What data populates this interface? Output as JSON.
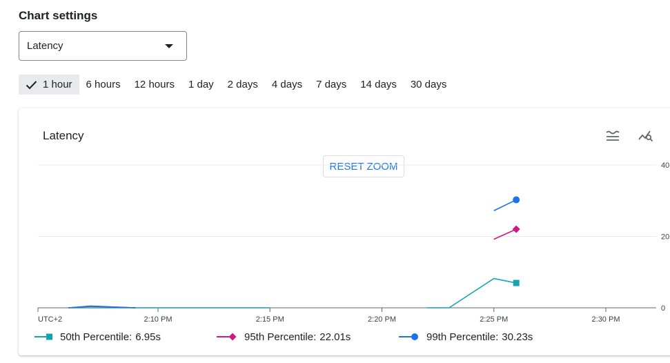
{
  "settings": {
    "title": "Chart settings"
  },
  "metric_select": {
    "value": "Latency"
  },
  "time_ranges": [
    {
      "label": "1 hour",
      "selected": true
    },
    {
      "label": "6 hours",
      "selected": false
    },
    {
      "label": "12 hours",
      "selected": false
    },
    {
      "label": "1 day",
      "selected": false
    },
    {
      "label": "2 days",
      "selected": false
    },
    {
      "label": "4 days",
      "selected": false
    },
    {
      "label": "7 days",
      "selected": false
    },
    {
      "label": "14 days",
      "selected": false
    },
    {
      "label": "30 days",
      "selected": false
    }
  ],
  "card": {
    "title": "Latency",
    "reset_zoom_label": "RESET ZOOM",
    "legend_toggle_icon": "legend-toggle-icon",
    "explore_icon": "explore-chart-icon"
  },
  "chart_data": {
    "type": "line",
    "title": "Latency",
    "timezone_label": "UTC+2",
    "x_ticks": [
      "2:10 PM",
      "2:15 PM",
      "2:20 PM",
      "2:25 PM",
      "2:30 PM"
    ],
    "y_ticks": [
      "0",
      "20",
      "40"
    ],
    "ylim": [
      0,
      40
    ],
    "grid": true,
    "legend_position": "bottom",
    "series": [
      {
        "name": "50th Percentile",
        "legend_value": "6.95s",
        "color": "#12a4af",
        "marker": "square",
        "points": [
          [
            "2:06 PM",
            0
          ],
          [
            "2:09 PM",
            0
          ],
          [
            "2:15 PM",
            0
          ],
          [
            "2:22 PM",
            0
          ],
          [
            "2:23 PM",
            0
          ],
          [
            "2:25 PM",
            8.2
          ],
          [
            "2:26 PM",
            6.95
          ]
        ]
      },
      {
        "name": "95th Percentile",
        "legend_value": "22.01s",
        "color": "#d01884",
        "marker": "diamond",
        "points": [
          [
            "2:06 PM",
            0
          ],
          [
            "2:07 PM",
            0.4
          ],
          [
            "2:09 PM",
            0
          ],
          [
            "2:25 PM",
            19.2
          ],
          [
            "2:26 PM",
            22.01
          ]
        ]
      },
      {
        "name": "99th Percentile",
        "legend_value": "30.23s",
        "color": "#1a73e8",
        "marker": "circle",
        "points": [
          [
            "2:06 PM",
            0
          ],
          [
            "2:07 PM",
            0.5
          ],
          [
            "2:09 PM",
            0
          ],
          [
            "2:25 PM",
            27.2
          ],
          [
            "2:26 PM",
            30.23
          ]
        ]
      }
    ]
  }
}
